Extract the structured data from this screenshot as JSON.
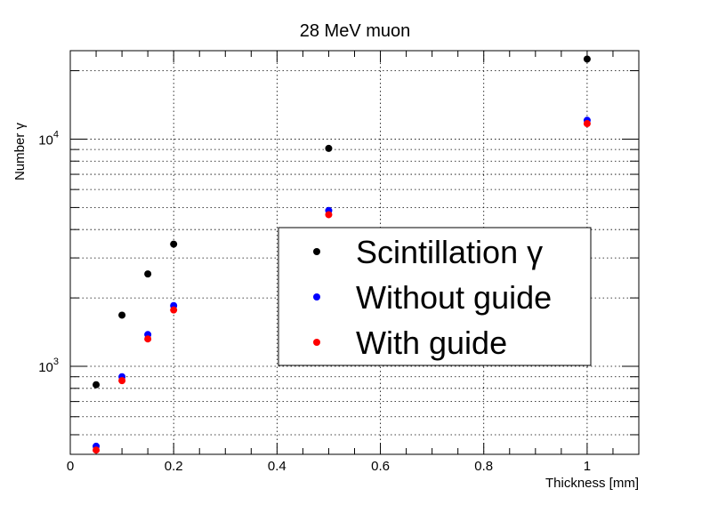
{
  "chart_data": {
    "type": "scatter",
    "title": "28 MeV muon",
    "xlabel": "Thickness [mm]",
    "ylabel": "Number γ",
    "xlim": [
      0,
      1.1
    ],
    "ylim": [
      410,
      24500
    ],
    "yscale": "log",
    "grid": true,
    "legend_position": "center-right",
    "x_ticks": [
      "0",
      "0.2",
      "0.4",
      "0.6",
      "0.8",
      "1"
    ],
    "y_ticks": [
      {
        "base": "10",
        "exp": "3"
      },
      {
        "base": "10",
        "exp": "4"
      }
    ],
    "series": [
      {
        "name": "Scintillation γ",
        "color": "#000000",
        "points": [
          [
            0.05,
            830
          ],
          [
            0.1,
            1680
          ],
          [
            0.15,
            2550
          ],
          [
            0.2,
            3450
          ],
          [
            0.5,
            9100
          ],
          [
            1.0,
            22500
          ]
        ]
      },
      {
        "name": "Without guide",
        "color": "#0000ff",
        "points": [
          [
            0.05,
            445
          ],
          [
            0.1,
            900
          ],
          [
            0.15,
            1380
          ],
          [
            0.2,
            1850
          ],
          [
            0.5,
            4850
          ],
          [
            1.0,
            12100
          ]
        ]
      },
      {
        "name": "With guide",
        "color": "#ff0000",
        "points": [
          [
            0.05,
            428
          ],
          [
            0.1,
            865
          ],
          [
            0.15,
            1320
          ],
          [
            0.2,
            1770
          ],
          [
            0.5,
            4650
          ],
          [
            1.0,
            11700
          ]
        ]
      }
    ]
  }
}
